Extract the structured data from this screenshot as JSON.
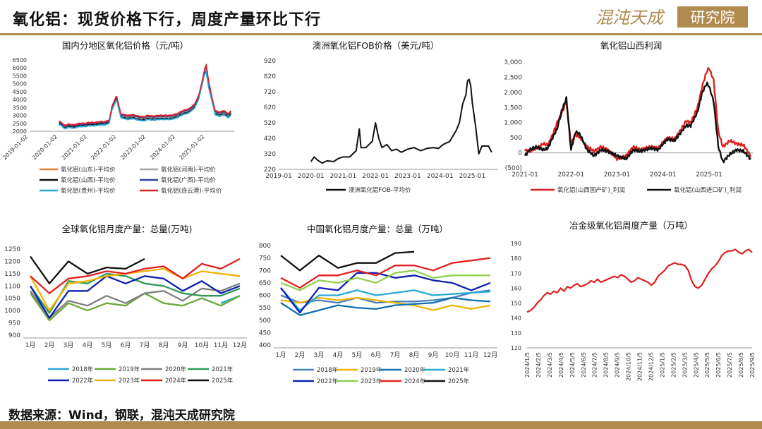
{
  "header": {
    "title": "氧化铝：现货价格下行，周度产量环比下行",
    "logo_text_a": "混沌天成",
    "logo_text_b": "研究院"
  },
  "footer": {
    "source": "数据来源：Wind，钢联，混沌天成研究院"
  },
  "colors": {
    "accent": "#b08a4e"
  },
  "chart_data": [
    {
      "id": "domestic",
      "type": "line",
      "title": "国内分地区氧化铝价格（元/吨）",
      "x_ticks": [
        "2019-01-02",
        "2020-01-02",
        "2021-01-02",
        "2022-01-02",
        "2023-01-02",
        "2024-01-02",
        "2025-01-02"
      ],
      "y_ticks": [
        "2000",
        "2500",
        "3000",
        "3500",
        "4000",
        "4500",
        "5000",
        "5500",
        "6000",
        "6500"
      ],
      "ylim": [
        2000,
        6500
      ],
      "xlim": [
        2019.0,
        2025.95
      ],
      "x_knots": [
        2020.0,
        2020.05,
        2020.2,
        2020.3,
        2020.5,
        2020.7,
        2020.9,
        2021.0,
        2021.2,
        2021.4,
        2021.55,
        2021.7,
        2021.8,
        2021.95,
        2022.1,
        2022.2,
        2022.35,
        2022.5,
        2022.7,
        2022.9,
        2023.0,
        2023.2,
        2023.4,
        2023.6,
        2023.8,
        2024.0,
        2024.2,
        2024.4,
        2024.6,
        2024.75,
        2024.85,
        2024.95,
        2025.0,
        2025.08,
        2025.2,
        2025.3,
        2025.45,
        2025.6,
        2025.75,
        2025.85
      ],
      "series": [
        {
          "name": "氧化铝(山东)-平均价",
          "color": "#ed7d31",
          "values": [
            2500,
            2500,
            2250,
            2350,
            2300,
            2400,
            2400,
            2450,
            2450,
            2500,
            2500,
            2600,
            3500,
            4150,
            3000,
            2950,
            2900,
            2950,
            2850,
            2800,
            2900,
            2850,
            2900,
            2900,
            2900,
            3000,
            3200,
            3300,
            3600,
            4200,
            5000,
            5900,
            6000,
            5000,
            4000,
            3200,
            3100,
            3200,
            3000,
            3200
          ]
        },
        {
          "name": "氧化铝(河南)-平均价",
          "color": "#a5a5a5",
          "values": [
            2450,
            2450,
            2200,
            2300,
            2250,
            2350,
            2350,
            2400,
            2400,
            2450,
            2450,
            2550,
            3450,
            4100,
            2950,
            2900,
            2850,
            2900,
            2800,
            2750,
            2850,
            2800,
            2850,
            2850,
            2850,
            2950,
            3150,
            3250,
            3550,
            4150,
            4950,
            5800,
            5850,
            4900,
            3950,
            3150,
            3050,
            3150,
            2950,
            3150
          ]
        },
        {
          "name": "氧化铝(山西)-平均价",
          "color": "#111111",
          "values": [
            2450,
            2450,
            2200,
            2300,
            2250,
            2350,
            2350,
            2400,
            2400,
            2450,
            2450,
            2550,
            3400,
            4050,
            2900,
            2850,
            2800,
            2850,
            2750,
            2700,
            2800,
            2750,
            2800,
            2800,
            2800,
            2900,
            3100,
            3200,
            3500,
            4100,
            4900,
            5700,
            5750,
            4800,
            3900,
            3100,
            3000,
            3100,
            2900,
            3100
          ]
        },
        {
          "name": "氧化铝(广西)-平均价",
          "color": "#3140a8",
          "values": [
            2550,
            2550,
            2300,
            2400,
            2350,
            2450,
            2450,
            2500,
            2500,
            2550,
            2550,
            2650,
            3550,
            4200,
            3050,
            3000,
            2950,
            3000,
            2900,
            2850,
            2950,
            2900,
            2950,
            2950,
            2950,
            3050,
            3250,
            3350,
            3650,
            4250,
            5050,
            5950,
            6050,
            5050,
            4050,
            3250,
            3150,
            3250,
            3050,
            3250
          ]
        },
        {
          "name": "氧化铝(贵州)-平均价",
          "color": "#27a8d8",
          "values": [
            2400,
            2400,
            2150,
            2250,
            2200,
            2300,
            2300,
            2350,
            2350,
            2400,
            2400,
            2500,
            3350,
            4000,
            2850,
            2800,
            2750,
            2800,
            2700,
            2650,
            2750,
            2700,
            2750,
            2750,
            2750,
            2850,
            3050,
            3150,
            3450,
            4050,
            4850,
            5650,
            5700,
            4750,
            3850,
            3050,
            2950,
            3050,
            2850,
            3050
          ]
        },
        {
          "name": "氧化铝(连云港)-平均价",
          "color": "#e02020",
          "values": [
            2600,
            2600,
            2350,
            2450,
            2400,
            2500,
            2500,
            2550,
            2550,
            2600,
            2600,
            2700,
            3600,
            4250,
            3100,
            3050,
            3000,
            3050,
            2950,
            2900,
            3000,
            2950,
            3000,
            3000,
            3000,
            3100,
            3300,
            3400,
            3700,
            4300,
            5100,
            6000,
            6200,
            5200,
            4100,
            3300,
            3200,
            3300,
            3100,
            3300
          ]
        }
      ]
    },
    {
      "id": "fob",
      "type": "line",
      "title": "澳洲氧化铝FOB价格（美元/吨）",
      "x_ticks": [
        "2019-01",
        "2020-01",
        "2021-01",
        "2022-01",
        "2023-01",
        "2024-01",
        "2025-01"
      ],
      "y_ticks": [
        "220",
        "320",
        "420",
        "520",
        "620",
        "720",
        "820",
        "920"
      ],
      "ylim": [
        220,
        920
      ],
      "xlim": [
        2019.0,
        2025.8
      ],
      "x": [
        2020.0,
        2020.1,
        2020.2,
        2020.35,
        2020.5,
        2020.7,
        2020.85,
        2021.0,
        2021.2,
        2021.4,
        2021.5,
        2021.55,
        2021.7,
        2021.9,
        2022.0,
        2022.1,
        2022.2,
        2022.35,
        2022.5,
        2022.65,
        2022.8,
        2023.0,
        2023.2,
        2023.4,
        2023.6,
        2023.8,
        2023.95,
        2024.1,
        2024.3,
        2024.5,
        2024.6,
        2024.7,
        2024.8,
        2024.85,
        2024.9,
        2024.95,
        2025.0,
        2025.1,
        2025.2,
        2025.3,
        2025.5,
        2025.6
      ],
      "series": [
        {
          "name": "澳洲氧化铝FOB-平均价",
          "color": "#111111",
          "values": [
            270,
            300,
            280,
            260,
            275,
            270,
            290,
            300,
            300,
            340,
            480,
            360,
            360,
            400,
            520,
            420,
            360,
            380,
            340,
            350,
            330,
            350,
            360,
            340,
            355,
            360,
            355,
            380,
            400,
            470,
            520,
            640,
            700,
            790,
            800,
            760,
            650,
            500,
            320,
            370,
            370,
            330
          ]
        }
      ]
    },
    {
      "id": "shanxi_profit",
      "type": "line",
      "title": "氧化铝山西利润",
      "x_ticks": [
        "2021-01",
        "2022-01",
        "2023-01",
        "2024-01",
        "2025-01"
      ],
      "y_ticks": [
        "(500)",
        "0",
        "500",
        "1,000",
        "1,500",
        "2,000",
        "2,500",
        "3,000"
      ],
      "ylim": [
        -500,
        3000
      ],
      "xlim": [
        2021.0,
        2025.95
      ],
      "x_knots": [
        2021.0,
        2021.1,
        2021.25,
        2021.4,
        2021.5,
        2021.6,
        2021.7,
        2021.8,
        2021.9,
        2022.0,
        2022.1,
        2022.2,
        2022.35,
        2022.5,
        2022.65,
        2022.8,
        2023.0,
        2023.2,
        2023.35,
        2023.5,
        2023.6,
        2023.75,
        2023.9,
        2024.0,
        2024.1,
        2024.25,
        2024.4,
        2024.5,
        2024.6,
        2024.75,
        2024.85,
        2024.95,
        2025.0,
        2025.1,
        2025.2,
        2025.3,
        2025.45,
        2025.6,
        2025.75,
        2025.9
      ],
      "series": [
        {
          "name": "氧化铝(山西国产矿)_利润",
          "color": "#e02020",
          "values": [
            100,
            50,
            150,
            300,
            250,
            600,
            1000,
            1300,
            1700,
            300,
            600,
            500,
            200,
            50,
            200,
            100,
            -200,
            -100,
            200,
            100,
            150,
            200,
            150,
            350,
            500,
            450,
            800,
            1050,
            1000,
            1500,
            2200,
            2700,
            2800,
            2400,
            700,
            200,
            400,
            300,
            250,
            -100
          ]
        },
        {
          "name": "氧化铝(山西进口矿)_利润",
          "color": "#111111",
          "values": [
            -100,
            100,
            200,
            100,
            150,
            500,
            800,
            1400,
            1800,
            100,
            700,
            600,
            100,
            -100,
            100,
            50,
            -100,
            -200,
            100,
            50,
            100,
            150,
            100,
            300,
            450,
            400,
            700,
            900,
            900,
            1350,
            2000,
            2300,
            2200,
            1700,
            200,
            -300,
            -50,
            100,
            50,
            -200
          ]
        }
      ]
    },
    {
      "id": "global_output",
      "type": "line",
      "title": "全球氧化铝月度产量：总量(万吨)",
      "categories": [
        "1月",
        "2月",
        "3月",
        "4月",
        "5月",
        "6月",
        "7月",
        "8月",
        "9月",
        "10月",
        "11月",
        "12月"
      ],
      "y_ticks": [
        "900",
        "950",
        "1000",
        "1050",
        "1100",
        "1150",
        "1200",
        "1250"
      ],
      "ylim": [
        900,
        1250
      ],
      "series": [
        {
          "name": "2018年",
          "color": "#27a8d8",
          "values": [
            null,
            null,
            null,
            null,
            null,
            null,
            null,
            null,
            null,
            null,
            1030,
            1060
          ]
        },
        {
          "name": "2019年",
          "color": "#6aaa3a",
          "values": [
            1070,
            960,
            1030,
            1000,
            1030,
            1020,
            1070,
            1030,
            1020,
            1050,
            1020,
            1060
          ]
        },
        {
          "name": "2020年",
          "color": "#7f7f7f",
          "values": [
            1080,
            970,
            1040,
            1020,
            1060,
            1030,
            1070,
            1080,
            1040,
            1090,
            1080,
            1110
          ]
        },
        {
          "name": "2021年",
          "color": "#2e9a57",
          "values": [
            1100,
            990,
            1120,
            1110,
            1150,
            1140,
            1110,
            1100,
            1070,
            1060,
            1060,
            1090
          ]
        },
        {
          "name": "2022年",
          "color": "#1020b0",
          "values": [
            1100,
            970,
            1080,
            1080,
            1140,
            1110,
            1140,
            1130,
            1080,
            1120,
            1070,
            1100
          ]
        },
        {
          "name": "2023年",
          "color": "#f0b400",
          "values": [
            1140,
            1000,
            1110,
            1120,
            1140,
            1150,
            1160,
            1170,
            1130,
            1160,
            1150,
            1140
          ]
        },
        {
          "name": "2024年",
          "color": "#e02020",
          "values": [
            1140,
            1070,
            1130,
            1140,
            1160,
            1150,
            1170,
            1180,
            1130,
            1190,
            1170,
            1210
          ]
        },
        {
          "name": "2025年",
          "color": "#111111",
          "values": [
            1220,
            1110,
            1200,
            1150,
            1175,
            1170,
            1210,
            null,
            null,
            null,
            null,
            null
          ]
        }
      ]
    },
    {
      "id": "china_output",
      "type": "line",
      "title": "中国氧化铝月度产量：总量（万吨）",
      "categories": [
        "1月",
        "2月",
        "3月",
        "4月",
        "5月",
        "6月",
        "7月",
        "8月",
        "9月",
        "10月",
        "11月",
        "12月"
      ],
      "y_ticks": [
        "400",
        "450",
        "500",
        "550",
        "600",
        "650",
        "700",
        "750",
        "800"
      ],
      "ylim": [
        400,
        800
      ],
      "series": [
        {
          "name": "2018年",
          "color": "#4a80c0",
          "values": [
            600,
            570,
            580,
            570,
            590,
            570,
            575,
            575,
            580,
            590,
            610,
            620
          ]
        },
        {
          "name": "2019年",
          "color": "#f0b400",
          "values": [
            580,
            570,
            590,
            580,
            590,
            580,
            570,
            560,
            540,
            560,
            545,
            560
          ]
        },
        {
          "name": "2020年",
          "color": "#1070b0",
          "values": [
            570,
            520,
            540,
            560,
            550,
            545,
            560,
            565,
            570,
            590,
            580,
            575
          ]
        },
        {
          "name": "2021年",
          "color": "#27a8d8",
          "values": [
            630,
            540,
            600,
            600,
            620,
            600,
            610,
            620,
            600,
            605,
            610,
            615
          ]
        },
        {
          "name": "2022年",
          "color": "#1020b0",
          "values": [
            630,
            530,
            630,
            620,
            690,
            690,
            670,
            680,
            660,
            650,
            620,
            650
          ]
        },
        {
          "name": "2023年",
          "color": "#92d050",
          "values": [
            650,
            620,
            660,
            650,
            670,
            650,
            690,
            700,
            670,
            680,
            680,
            680
          ]
        },
        {
          "name": "2024年",
          "color": "#e02020",
          "values": [
            670,
            630,
            680,
            680,
            700,
            680,
            720,
            720,
            700,
            730,
            740,
            750
          ]
        },
        {
          "name": "2025年",
          "color": "#111111",
          "values": [
            760,
            700,
            760,
            710,
            730,
            730,
            770,
            775,
            null,
            null,
            null,
            null
          ]
        }
      ]
    },
    {
      "id": "weekly_output",
      "type": "line",
      "title": "冶金级氧化铝周度产量（万吨）",
      "x_ticks": [
        "2024/1/5",
        "2024/2/5",
        "2024/3/5",
        "2024/4/5",
        "2024/5/5",
        "2024/6/5",
        "2024/7/5",
        "2024/8/5",
        "2024/9/5",
        "2024/10/5",
        "2024/11/5",
        "2024/12/5",
        "2025/1/5",
        "2025/2/5",
        "2025/3/5",
        "2025/4/5",
        "2025/5/5",
        "2025/6/5",
        "2025/7/5",
        "2025/8/5",
        "2025/9/5"
      ],
      "y_ticks": [
        "120",
        "130",
        "140",
        "150",
        "160",
        "170",
        "180",
        "190"
      ],
      "ylim": [
        120,
        190
      ],
      "values": [
        144,
        145,
        147,
        150,
        152,
        155,
        157,
        156,
        158,
        157,
        160,
        158,
        161,
        160,
        162,
        163,
        161,
        162,
        163,
        165,
        164,
        166,
        164,
        165,
        166,
        167,
        168,
        167,
        169,
        168,
        166,
        164,
        165,
        167,
        166,
        165,
        164,
        162,
        164,
        168,
        170,
        172,
        175,
        176,
        177,
        176,
        176,
        175,
        172,
        165,
        161,
        160,
        162,
        166,
        170,
        173,
        175,
        178,
        182,
        184,
        185,
        185,
        186,
        184,
        183,
        185,
        186,
        184
      ]
    }
  ]
}
